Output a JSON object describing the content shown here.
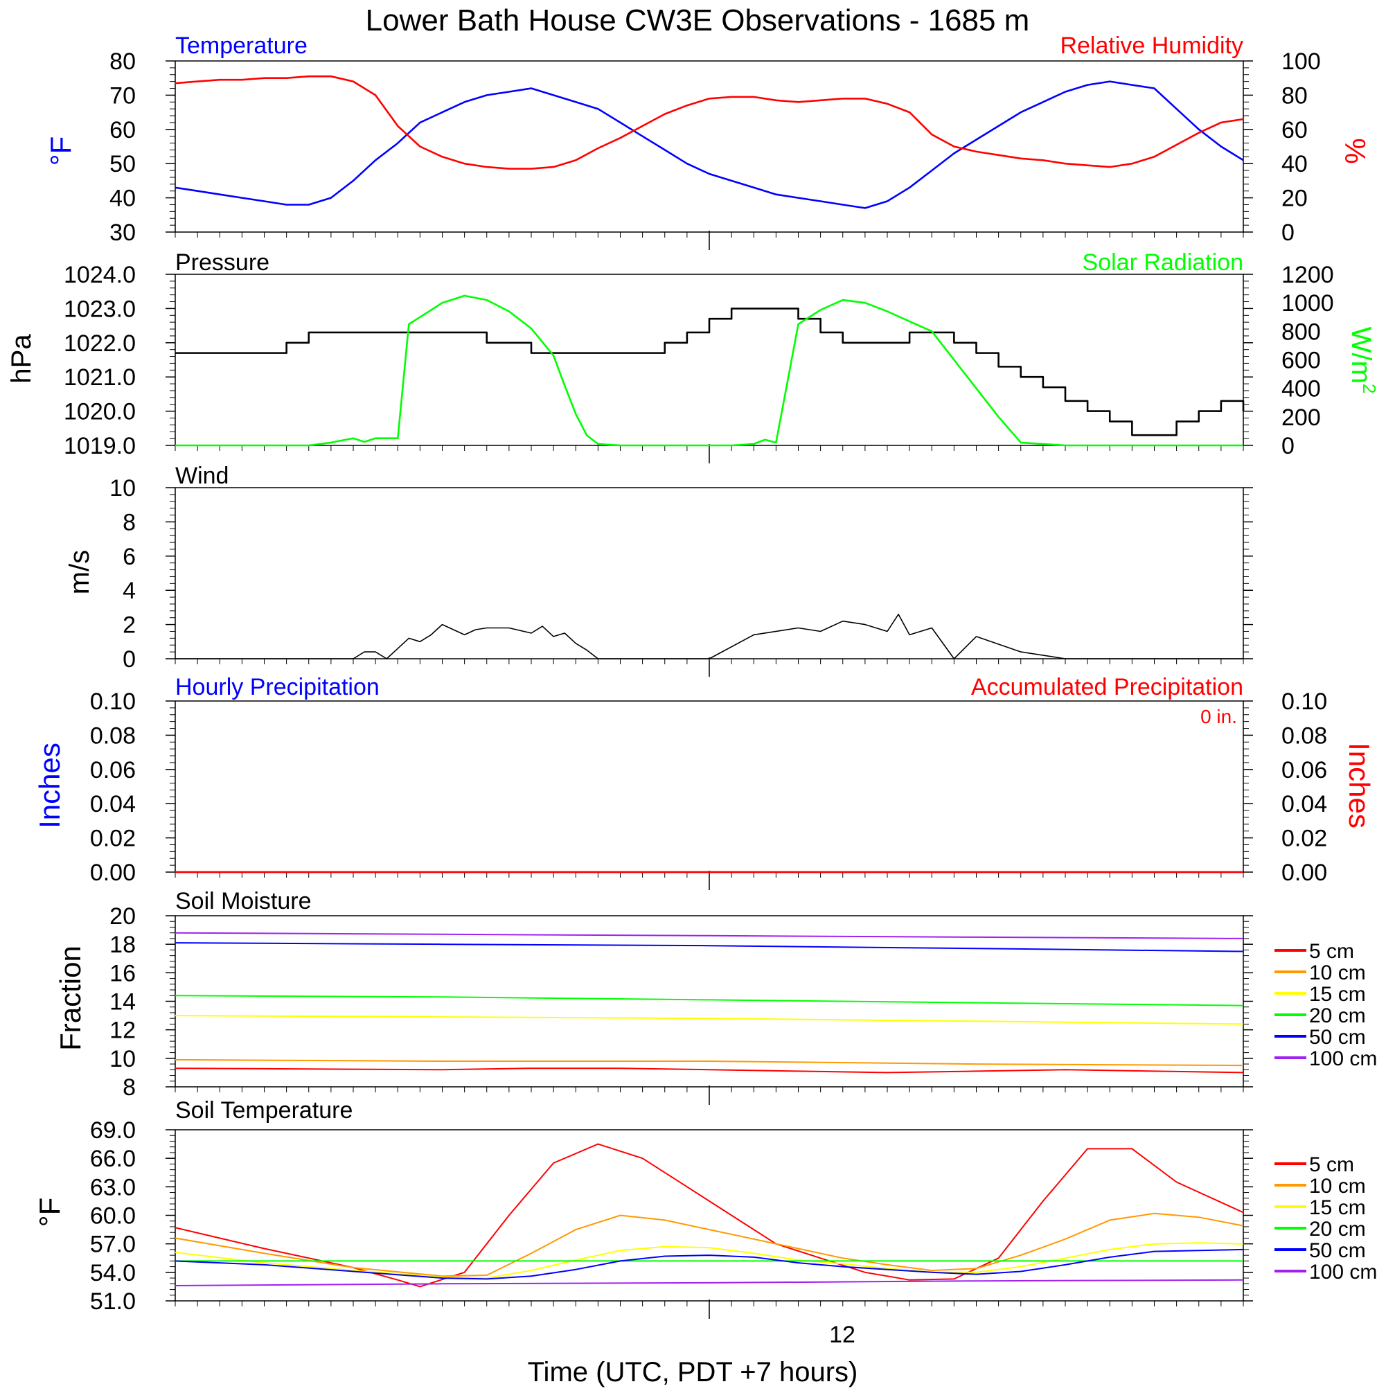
{
  "title": "Lower Bath House CW3E Observations - 1685 m",
  "xaxis": {
    "label": "Time (UTC, PDT +7 hours)",
    "tick_label": "12",
    "hours": 48,
    "tick_hour": 24
  },
  "colors": {
    "blue": "#0000ff",
    "red": "#ff0000",
    "green": "#00ff00",
    "black": "#000000",
    "orange": "#ff9900",
    "yellow": "#ffff00",
    "purple": "#a020f0"
  },
  "panels": {
    "temp": {
      "left_title": "Temperature",
      "right_title": "Relative Humidity",
      "left_unit": "°F",
      "right_unit": "%",
      "left_ticks": [
        "30",
        "40",
        "50",
        "60",
        "70",
        "80"
      ],
      "right_ticks": [
        "0",
        "20",
        "40",
        "60",
        "80",
        "100"
      ]
    },
    "pressure": {
      "left_title": "Pressure",
      "right_title": "Solar Radiation",
      "left_unit": "hPa",
      "right_unit": "W/m",
      "right_unit_sup": "2",
      "left_ticks": [
        "1019.0",
        "1020.0",
        "1021.0",
        "1022.0",
        "1023.0",
        "1024.0"
      ],
      "right_ticks": [
        "0",
        "200",
        "400",
        "600",
        "800",
        "1000",
        "1200"
      ]
    },
    "wind": {
      "left_title": "Wind",
      "left_unit": "m/s",
      "left_ticks": [
        "0",
        "2",
        "4",
        "6",
        "8",
        "10"
      ]
    },
    "precip": {
      "left_title": "Hourly Precipitation",
      "right_title": "Accumulated Precipitation",
      "left_unit": "Inches",
      "right_unit": "Inches",
      "annotation": "0 in.",
      "left_ticks": [
        "0.00",
        "0.02",
        "0.04",
        "0.06",
        "0.08",
        "0.10"
      ],
      "right_ticks": [
        "0.00",
        "0.02",
        "0.04",
        "0.06",
        "0.08",
        "0.10"
      ]
    },
    "soil_moisture": {
      "left_title": "Soil Moisture",
      "left_unit": "Fraction",
      "left_ticks": [
        "8",
        "10",
        "12",
        "14",
        "16",
        "18",
        "20"
      ],
      "legend": [
        "5 cm",
        "10 cm",
        "15 cm",
        "20 cm",
        "50 cm",
        "100 cm"
      ]
    },
    "soil_temp": {
      "left_title": "Soil Temperature",
      "left_unit": "°F",
      "left_ticks": [
        "51.0",
        "54.0",
        "57.0",
        "60.0",
        "63.0",
        "66.0",
        "69.0"
      ],
      "legend": [
        "5 cm",
        "10 cm",
        "15 cm",
        "20 cm",
        "50 cm",
        "100 cm"
      ]
    }
  },
  "chart_data": [
    {
      "type": "line",
      "title": "Temperature",
      "ylabel": "°F",
      "ylim": [
        30,
        80
      ],
      "x_unit": "hours",
      "xlim": [
        0,
        48
      ],
      "series": [
        {
          "name": "Temperature",
          "x": [
            0,
            1,
            2,
            3,
            4,
            5,
            6,
            7,
            8,
            9,
            10,
            11,
            12,
            13,
            14,
            15,
            16,
            17,
            18,
            19,
            20,
            21,
            22,
            23,
            24,
            25,
            26,
            27,
            28,
            29,
            30,
            31,
            32,
            33,
            34,
            35,
            36,
            37,
            38,
            39,
            40,
            41,
            42,
            43,
            44,
            45,
            46,
            47,
            48
          ],
          "y": [
            43,
            42,
            41,
            40,
            39,
            38,
            38,
            40,
            45,
            51,
            56,
            62,
            65,
            68,
            70,
            71,
            72,
            70,
            68,
            66,
            62,
            58,
            54,
            50,
            47,
            45,
            43,
            41,
            40,
            39,
            38,
            37,
            39,
            43,
            48,
            53,
            57,
            61,
            65,
            68,
            71,
            73,
            74,
            73,
            72,
            66,
            60,
            55,
            51
          ]
        }
      ]
    },
    {
      "type": "line",
      "title": "Relative Humidity",
      "ylabel": "%",
      "ylim": [
        0,
        100
      ],
      "x_unit": "hours",
      "xlim": [
        0,
        48
      ],
      "series": [
        {
          "name": "Relative Humidity",
          "x": [
            0,
            1,
            2,
            3,
            4,
            5,
            6,
            7,
            8,
            9,
            10,
            11,
            12,
            13,
            14,
            15,
            16,
            17,
            18,
            19,
            20,
            21,
            22,
            23,
            24,
            25,
            26,
            27,
            28,
            29,
            30,
            31,
            32,
            33,
            34,
            35,
            36,
            37,
            38,
            39,
            40,
            41,
            42,
            43,
            44,
            45,
            46,
            47,
            48
          ],
          "y": [
            87,
            88,
            89,
            89,
            90,
            90,
            91,
            91,
            88,
            80,
            62,
            50,
            44,
            40,
            38,
            37,
            37,
            38,
            42,
            49,
            55,
            62,
            69,
            74,
            78,
            79,
            79,
            77,
            76,
            77,
            78,
            78,
            75,
            70,
            57,
            50,
            47,
            45,
            43,
            42,
            40,
            39,
            38,
            40,
            44,
            51,
            58,
            64,
            66
          ]
        }
      ]
    },
    {
      "type": "line",
      "title": "Pressure",
      "ylabel": "hPa",
      "ylim": [
        1019,
        1024
      ],
      "x_unit": "hours",
      "xlim": [
        0,
        48
      ],
      "series": [
        {
          "name": "Pressure",
          "x": [
            0,
            2,
            4,
            5,
            6,
            7,
            8,
            9,
            10,
            11,
            12,
            13,
            14,
            15,
            16,
            17,
            18,
            19,
            20,
            21,
            22,
            23,
            24,
            25,
            26,
            27,
            28,
            29,
            30,
            31,
            32,
            33,
            34,
            35,
            36,
            37,
            38,
            39,
            40,
            41,
            42,
            43,
            44,
            45,
            46,
            47,
            48
          ],
          "y": [
            1021.7,
            1021.7,
            1021.7,
            1022.0,
            1022.3,
            1022.3,
            1022.3,
            1022.3,
            1022.3,
            1022.3,
            1022.3,
            1022.3,
            1022.0,
            1022.0,
            1021.7,
            1021.7,
            1021.7,
            1021.7,
            1021.7,
            1021.7,
            1022.0,
            1022.3,
            1022.7,
            1023.0,
            1023.0,
            1023.0,
            1022.7,
            1022.3,
            1022.0,
            1022.0,
            1022.0,
            1022.3,
            1022.3,
            1022.0,
            1021.7,
            1021.3,
            1021.0,
            1020.7,
            1020.3,
            1020.0,
            1019.7,
            1019.3,
            1019.3,
            1019.7,
            1020.0,
            1020.3,
            1020.0
          ]
        }
      ]
    },
    {
      "type": "line",
      "title": "Solar Radiation",
      "ylabel": "W/m2",
      "ylim": [
        0,
        1200
      ],
      "x_unit": "hours",
      "xlim": [
        0,
        48
      ],
      "series": [
        {
          "name": "Solar Radiation",
          "x": [
            0,
            2,
            4,
            6,
            7,
            8,
            8.5,
            9,
            10,
            10.5,
            11,
            12,
            13,
            14,
            15,
            16,
            17,
            17.5,
            18,
            18.5,
            19,
            20,
            22,
            24,
            25,
            26,
            26.5,
            27,
            28,
            29,
            30,
            31,
            32,
            33,
            34,
            35,
            36,
            37,
            38,
            40,
            42,
            44,
            46,
            48
          ],
          "y": [
            0,
            0,
            0,
            0,
            20,
            50,
            25,
            50,
            50,
            850,
            900,
            1000,
            1050,
            1020,
            940,
            820,
            630,
            420,
            220,
            70,
            10,
            0,
            0,
            0,
            0,
            10,
            40,
            20,
            850,
            950,
            1020,
            1000,
            940,
            870,
            800,
            600,
            400,
            200,
            20,
            0,
            0,
            0,
            0,
            0
          ]
        }
      ]
    },
    {
      "type": "line",
      "title": "Wind",
      "ylabel": "m/s",
      "ylim": [
        0,
        10
      ],
      "x_unit": "hours",
      "xlim": [
        0,
        48
      ],
      "series": [
        {
          "name": "Wind",
          "x": [
            0,
            8,
            8.5,
            9,
            9.5,
            10,
            10.5,
            11,
            11.5,
            12,
            12.5,
            13,
            13.5,
            14,
            15,
            16,
            16.5,
            17,
            17.5,
            18,
            18.5,
            19,
            20,
            22,
            24,
            26,
            28,
            29,
            30,
            31,
            32,
            32.5,
            33,
            34,
            35,
            36,
            38,
            40,
            42,
            44,
            46,
            48
          ],
          "y": [
            0,
            0,
            0.4,
            0.4,
            0,
            0.6,
            1.2,
            1.0,
            1.4,
            2.0,
            1.7,
            1.4,
            1.7,
            1.8,
            1.8,
            1.5,
            1.9,
            1.3,
            1.5,
            0.9,
            0.5,
            0,
            0,
            0,
            0,
            1.4,
            1.8,
            1.6,
            2.2,
            2.0,
            1.6,
            2.6,
            1.4,
            1.8,
            0,
            1.3,
            0.4,
            0,
            0,
            0,
            0,
            0
          ]
        }
      ]
    },
    {
      "type": "line",
      "title": "Hourly Precipitation",
      "ylabel": "Inches",
      "ylim": [
        0,
        0.1
      ],
      "x_unit": "hours",
      "xlim": [
        0,
        48
      ],
      "series": [
        {
          "name": "Hourly Precipitation",
          "x": [
            0,
            48
          ],
          "y": [
            0,
            0
          ]
        },
        {
          "name": "Accumulated Precipitation",
          "x": [
            0,
            48
          ],
          "y": [
            0,
            0
          ]
        }
      ]
    },
    {
      "type": "line",
      "title": "Soil Moisture",
      "ylabel": "Fraction",
      "ylim": [
        8,
        20
      ],
      "x_unit": "hours",
      "xlim": [
        0,
        48
      ],
      "series": [
        {
          "name": "5 cm",
          "x": [
            0,
            12,
            16,
            20,
            24,
            28,
            32,
            36,
            40,
            44,
            48
          ],
          "y": [
            9.3,
            9.2,
            9.3,
            9.3,
            9.2,
            9.1,
            9.0,
            9.1,
            9.2,
            9.1,
            9.0
          ]
        },
        {
          "name": "10 cm",
          "x": [
            0,
            12,
            24,
            36,
            48
          ],
          "y": [
            9.9,
            9.8,
            9.8,
            9.6,
            9.5
          ]
        },
        {
          "name": "15 cm",
          "x": [
            0,
            12,
            24,
            36,
            48
          ],
          "y": [
            13.0,
            12.9,
            12.8,
            12.6,
            12.4
          ]
        },
        {
          "name": "20 cm",
          "x": [
            0,
            12,
            24,
            36,
            48
          ],
          "y": [
            14.4,
            14.3,
            14.1,
            13.9,
            13.7
          ]
        },
        {
          "name": "50 cm",
          "x": [
            0,
            12,
            24,
            36,
            48
          ],
          "y": [
            18.1,
            18.0,
            17.9,
            17.7,
            17.5
          ]
        },
        {
          "name": "100 cm",
          "x": [
            0,
            12,
            24,
            36,
            48
          ],
          "y": [
            18.8,
            18.7,
            18.6,
            18.5,
            18.4
          ]
        }
      ]
    },
    {
      "type": "line",
      "title": "Soil Temperature",
      "ylabel": "°F",
      "ylim": [
        51,
        69
      ],
      "x_unit": "hours",
      "xlim": [
        0,
        48
      ],
      "series": [
        {
          "name": "5 cm",
          "x": [
            0,
            4,
            8,
            10,
            11,
            13,
            15,
            17,
            19,
            21,
            23,
            25,
            27,
            29,
            31,
            33,
            35,
            37,
            39,
            41,
            43,
            45,
            48
          ],
          "y": [
            58.7,
            56.5,
            54.5,
            53.2,
            52.5,
            54.0,
            60.0,
            65.5,
            67.5,
            66.0,
            63.0,
            60.0,
            57.0,
            55.5,
            54.0,
            53.2,
            53.3,
            55.5,
            61.5,
            67.0,
            67.0,
            63.5,
            60.3
          ]
        },
        {
          "name": "10 cm",
          "x": [
            0,
            4,
            8,
            12,
            14,
            16,
            18,
            20,
            22,
            24,
            26,
            28,
            30,
            32,
            34,
            36,
            38,
            40,
            42,
            44,
            46,
            48
          ],
          "y": [
            57.6,
            56.0,
            54.5,
            53.6,
            53.7,
            56.0,
            58.5,
            60.0,
            59.5,
            58.5,
            57.5,
            56.5,
            55.5,
            54.8,
            54.2,
            54.4,
            55.8,
            57.5,
            59.5,
            60.2,
            59.8,
            58.9
          ]
        },
        {
          "name": "15 cm",
          "x": [
            0,
            4,
            8,
            12,
            14,
            16,
            18,
            20,
            22,
            24,
            26,
            28,
            30,
            32,
            34,
            36,
            38,
            40,
            42,
            44,
            46,
            48
          ],
          "y": [
            56.1,
            55.0,
            54.2,
            53.5,
            53.4,
            54.2,
            55.3,
            56.3,
            56.7,
            56.6,
            56.0,
            55.3,
            54.9,
            54.4,
            54.0,
            54.0,
            54.6,
            55.5,
            56.4,
            57.0,
            57.1,
            57.0
          ]
        },
        {
          "name": "20 cm",
          "x": [
            0,
            24,
            48
          ],
          "y": [
            55.2,
            55.2,
            55.2
          ]
        },
        {
          "name": "50 cm",
          "x": [
            0,
            4,
            8,
            12,
            14,
            16,
            18,
            20,
            22,
            24,
            26,
            28,
            30,
            32,
            34,
            36,
            38,
            40,
            42,
            44,
            46,
            48
          ],
          "y": [
            55.2,
            54.8,
            54.1,
            53.4,
            53.3,
            53.6,
            54.3,
            55.2,
            55.7,
            55.8,
            55.6,
            55.0,
            54.6,
            54.3,
            54.0,
            53.8,
            54.1,
            54.8,
            55.6,
            56.2,
            56.3,
            56.4
          ]
        },
        {
          "name": "100 cm",
          "x": [
            0,
            12,
            24,
            36,
            48
          ],
          "y": [
            52.6,
            52.8,
            52.9,
            53.1,
            53.2
          ]
        }
      ]
    }
  ]
}
